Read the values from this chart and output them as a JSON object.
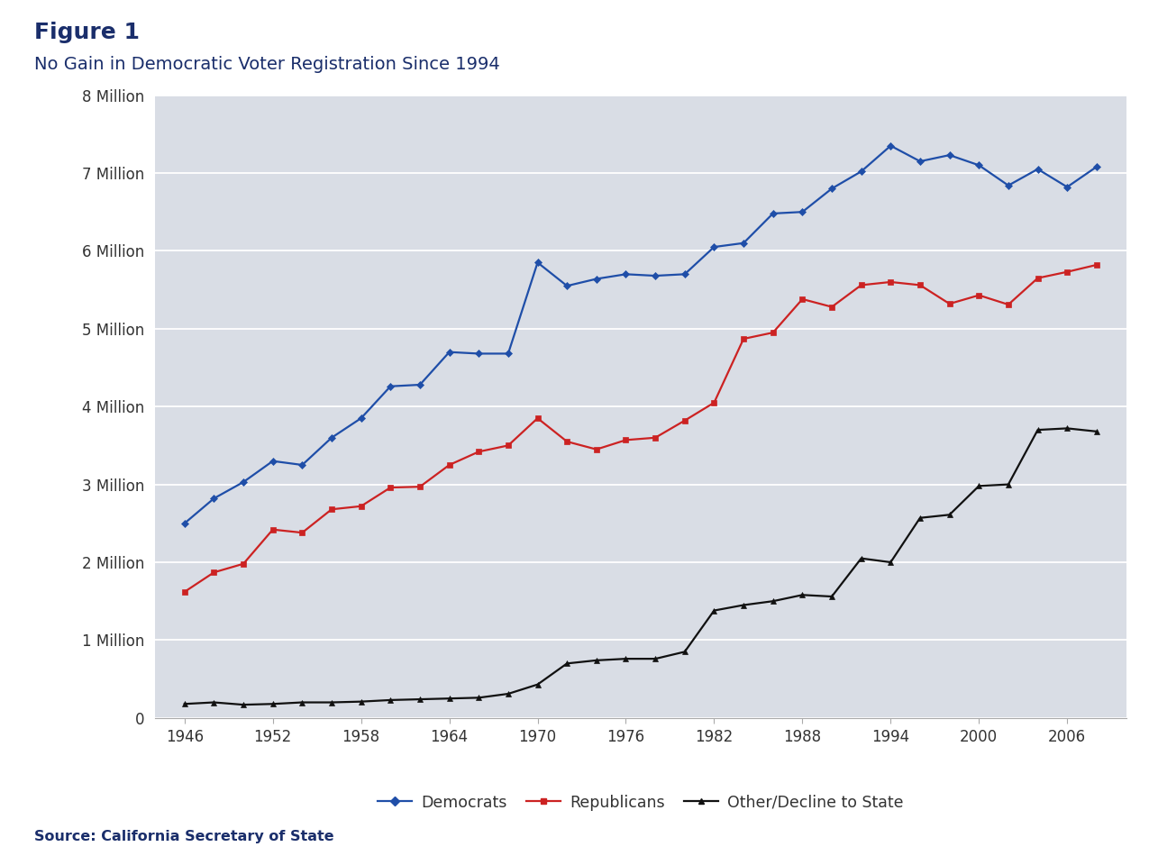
{
  "title_label": "Figure 1",
  "subtitle": "No Gain in Democratic Voter Registration Since 1994",
  "source": "Source: California Secretary of State",
  "background_color": "#d9dde5",
  "outer_bg_color": "#ffffff",
  "ylim": [
    0,
    8000000
  ],
  "yticks": [
    0,
    1000000,
    2000000,
    3000000,
    4000000,
    5000000,
    6000000,
    7000000,
    8000000
  ],
  "ytick_labels": [
    "0",
    "1 Million",
    "2 Million",
    "3 Million",
    "4 Million",
    "5 Million",
    "6 Million",
    "7 Million",
    "8 Million"
  ],
  "xlim": [
    1944,
    2010
  ],
  "xticks": [
    1946,
    1952,
    1958,
    1964,
    1970,
    1976,
    1982,
    1988,
    1994,
    2000,
    2006
  ],
  "democrats_color": "#1f4ea8",
  "republicans_color": "#cc2222",
  "other_color": "#111111",
  "title_color": "#1a2e6b",
  "democrats_x": [
    1946,
    1948,
    1950,
    1952,
    1954,
    1956,
    1958,
    1960,
    1962,
    1964,
    1966,
    1968,
    1970,
    1972,
    1974,
    1976,
    1978,
    1980,
    1982,
    1984,
    1986,
    1988,
    1990,
    1992,
    1994,
    1996,
    1998,
    2000,
    2002,
    2004,
    2006,
    2008
  ],
  "democrats_y": [
    2500000,
    2820000,
    3030000,
    3300000,
    3250000,
    3600000,
    3850000,
    4260000,
    4280000,
    4700000,
    4680000,
    4680000,
    5850000,
    5550000,
    5640000,
    5700000,
    5680000,
    5700000,
    6050000,
    6100000,
    6480000,
    6500000,
    6800000,
    7020000,
    7350000,
    7150000,
    7230000,
    7100000,
    6840000,
    7050000,
    6820000,
    7080000
  ],
  "republicans_x": [
    1946,
    1948,
    1950,
    1952,
    1954,
    1956,
    1958,
    1960,
    1962,
    1964,
    1966,
    1968,
    1970,
    1972,
    1974,
    1976,
    1978,
    1980,
    1982,
    1984,
    1986,
    1988,
    1990,
    1992,
    1994,
    1996,
    1998,
    2000,
    2002,
    2004,
    2006,
    2008
  ],
  "republicans_y": [
    1620000,
    1870000,
    1980000,
    2420000,
    2380000,
    2680000,
    2720000,
    2960000,
    2970000,
    3250000,
    3420000,
    3500000,
    3850000,
    3550000,
    3450000,
    3570000,
    3600000,
    3820000,
    4050000,
    4870000,
    4950000,
    5380000,
    5280000,
    5560000,
    5600000,
    5560000,
    5320000,
    5430000,
    5310000,
    5650000,
    5730000,
    5820000
  ],
  "other_x": [
    1946,
    1948,
    1950,
    1952,
    1954,
    1956,
    1958,
    1960,
    1962,
    1964,
    1966,
    1968,
    1970,
    1972,
    1974,
    1976,
    1978,
    1980,
    1982,
    1984,
    1986,
    1988,
    1990,
    1992,
    1994,
    1996,
    1998,
    2000,
    2002,
    2004,
    2006,
    2008
  ],
  "other_y": [
    180000,
    200000,
    170000,
    180000,
    200000,
    200000,
    210000,
    230000,
    240000,
    250000,
    260000,
    310000,
    430000,
    700000,
    740000,
    760000,
    760000,
    850000,
    1380000,
    1450000,
    1500000,
    1580000,
    1560000,
    2050000,
    2000000,
    2570000,
    2610000,
    2980000,
    3000000,
    3700000,
    3720000,
    3680000
  ]
}
